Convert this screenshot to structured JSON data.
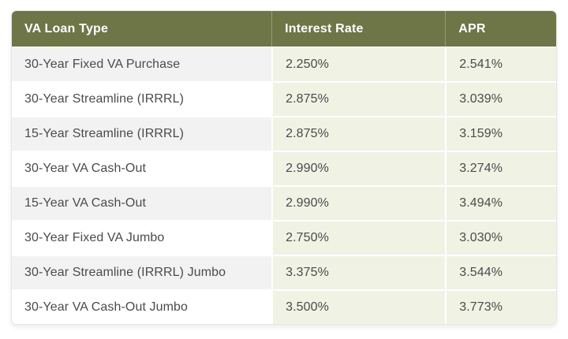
{
  "chart_data": {
    "type": "table",
    "columns": [
      "VA Loan Type",
      "Interest Rate",
      "APR"
    ],
    "rows": [
      {
        "loan_type": "30-Year Fixed VA Purchase",
        "interest_rate": "2.250%",
        "apr": "2.541%"
      },
      {
        "loan_type": "30-Year Streamline (IRRRL)",
        "interest_rate": "2.875%",
        "apr": "3.039%"
      },
      {
        "loan_type": "15-Year Streamline (IRRRL)",
        "interest_rate": "2.875%",
        "apr": "3.159%"
      },
      {
        "loan_type": "30-Year VA Cash-Out",
        "interest_rate": "2.990%",
        "apr": "3.274%"
      },
      {
        "loan_type": "15-Year VA Cash-Out",
        "interest_rate": "2.990%",
        "apr": "3.494%"
      },
      {
        "loan_type": "30-Year Fixed VA Jumbo",
        "interest_rate": "2.750%",
        "apr": "3.030%"
      },
      {
        "loan_type": "30-Year Streamline (IRRRL) Jumbo",
        "interest_rate": "3.375%",
        "apr": "3.544%"
      },
      {
        "loan_type": "30-Year VA Cash-Out Jumbo",
        "interest_rate": "3.500%",
        "apr": "3.773%"
      }
    ]
  },
  "colors": {
    "header_bg": "#6e7547",
    "header_text": "#ffffff",
    "rate_col_bg": "#f0f2e4",
    "alt_row_bg": "#f2f2f2",
    "row_bg": "#ffffff",
    "body_text": "#4b4b4b",
    "border": "#e6e6e6"
  }
}
